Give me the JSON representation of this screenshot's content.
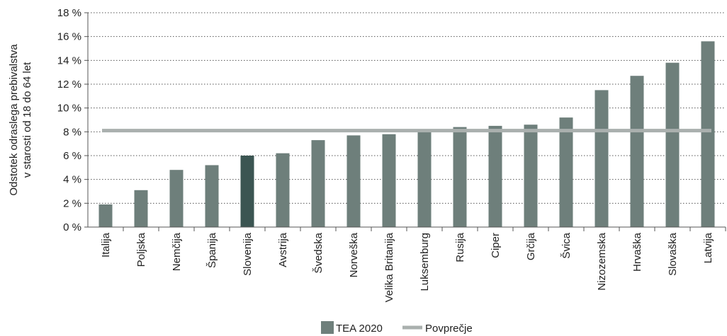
{
  "chart_data": {
    "type": "bar",
    "ylabel_lines": [
      "Odstotek odraslega prebivalstva",
      "v starosti od 18 do 64 let"
    ],
    "ylim": [
      0,
      18
    ],
    "yticks": [
      {
        "value": 0,
        "label": "0 %"
      },
      {
        "value": 2,
        "label": "2 %"
      },
      {
        "value": 4,
        "label": "4 %"
      },
      {
        "value": 6,
        "label": "6 %"
      },
      {
        "value": 8,
        "label": "8 %"
      },
      {
        "value": 10,
        "label": "10 %"
      },
      {
        "value": 12,
        "label": "12 %"
      },
      {
        "value": 14,
        "label": "14 %"
      },
      {
        "value": 16,
        "label": "16 %"
      },
      {
        "value": 18,
        "label": "18 %"
      }
    ],
    "grid": true,
    "categories": [
      "Italija",
      "Poljska",
      "Nemčija",
      "Španija",
      "Slovenija",
      "Avstrija",
      "Švedska",
      "Norveška",
      "Velika Britanija",
      "Luksemburg",
      "Rusija",
      "Ciper",
      "Grčija",
      "Švica",
      "Nizozemska",
      "Hrvaška",
      "Slovaška",
      "Latvija"
    ],
    "series": [
      {
        "name": "TEA 2020",
        "values": [
          1.9,
          3.1,
          4.8,
          5.2,
          6.0,
          6.2,
          7.3,
          7.7,
          7.8,
          8.0,
          8.4,
          8.5,
          8.6,
          9.2,
          11.5,
          12.7,
          13.8,
          15.6
        ]
      }
    ],
    "highlight_category": "Slovenija",
    "average": {
      "name": "Povprečje",
      "value": 8.1
    },
    "legend_position": "bottom-center",
    "colors": {
      "bar": "#6e7f7b",
      "highlight": "#3b5552",
      "average": "#aab0ae"
    }
  }
}
